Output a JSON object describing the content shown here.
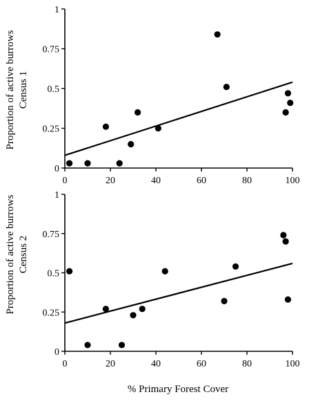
{
  "chart_data": [
    {
      "type": "scatter",
      "ylabel_lines": [
        "Proportion of active burrows",
        "Census 1"
      ],
      "xlabel": "",
      "xlim": [
        0,
        100
      ],
      "ylim": [
        0,
        1
      ],
      "xticks": [
        "0",
        "20",
        "40",
        "60",
        "80",
        "100"
      ],
      "yticks": [
        "0",
        "0.25",
        "0.5",
        "0.75",
        "1"
      ],
      "points": [
        {
          "x": 2,
          "y": 0.03
        },
        {
          "x": 10,
          "y": 0.03
        },
        {
          "x": 18,
          "y": 0.26
        },
        {
          "x": 24,
          "y": 0.03
        },
        {
          "x": 29,
          "y": 0.15
        },
        {
          "x": 32,
          "y": 0.35
        },
        {
          "x": 41,
          "y": 0.25
        },
        {
          "x": 67,
          "y": 0.84
        },
        {
          "x": 71,
          "y": 0.51
        },
        {
          "x": 97,
          "y": 0.35
        },
        {
          "x": 98,
          "y": 0.47
        },
        {
          "x": 99,
          "y": 0.41
        }
      ],
      "trendline": {
        "x": [
          0,
          100
        ],
        "y": [
          0.08,
          0.54
        ]
      }
    },
    {
      "type": "scatter",
      "ylabel_lines": [
        "Proportion of active burrows",
        "Census 2"
      ],
      "xlabel": "% Primary Forest Cover",
      "xlim": [
        0,
        100
      ],
      "ylim": [
        0,
        1
      ],
      "xticks": [
        "0",
        "20",
        "40",
        "60",
        "80",
        "100"
      ],
      "yticks": [
        "0",
        "0.25",
        "0.5",
        "0.75",
        "1"
      ],
      "points": [
        {
          "x": 2,
          "y": 0.51
        },
        {
          "x": 10,
          "y": 0.04
        },
        {
          "x": 18,
          "y": 0.27
        },
        {
          "x": 25,
          "y": 0.04
        },
        {
          "x": 30,
          "y": 0.23
        },
        {
          "x": 34,
          "y": 0.27
        },
        {
          "x": 44,
          "y": 0.51
        },
        {
          "x": 70,
          "y": 0.32
        },
        {
          "x": 75,
          "y": 0.54
        },
        {
          "x": 96,
          "y": 0.74
        },
        {
          "x": 97,
          "y": 0.7
        },
        {
          "x": 98,
          "y": 0.33
        }
      ],
      "trendline": {
        "x": [
          0,
          100
        ],
        "y": [
          0.18,
          0.56
        ]
      }
    }
  ]
}
